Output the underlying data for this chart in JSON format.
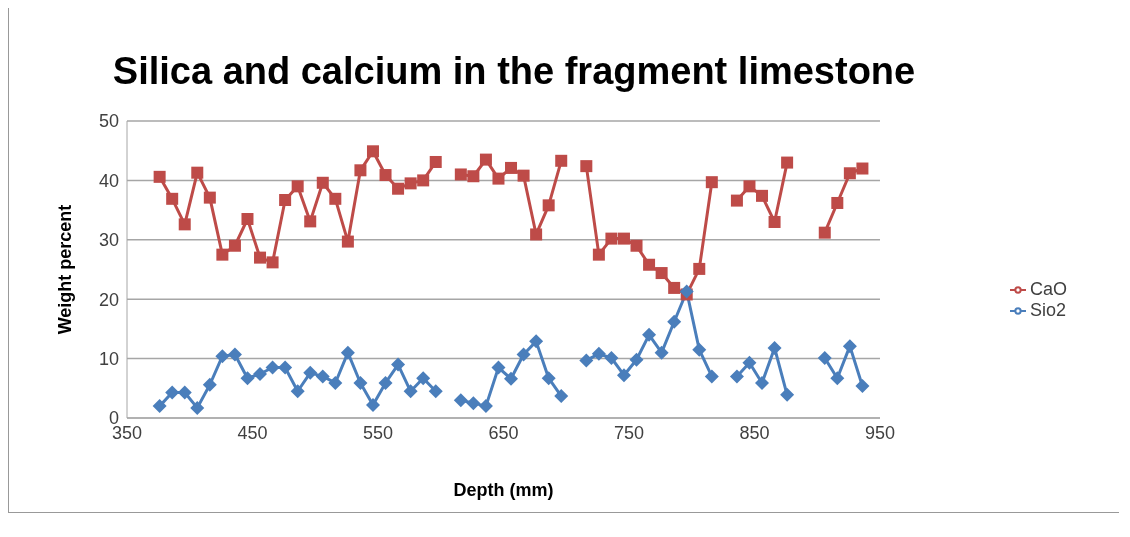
{
  "chart_data": {
    "type": "line",
    "title": "Silica and calcium in the fragment limestone",
    "xlabel": "Depth (mm)",
    "ylabel": "Weight percent",
    "x": [
      376,
      386,
      396,
      406,
      416,
      426,
      436,
      446,
      456,
      466,
      476,
      486,
      496,
      506,
      516,
      526,
      536,
      546,
      556,
      566,
      576,
      586,
      596,
      606,
      616,
      626,
      636,
      646,
      656,
      666,
      676,
      686,
      696,
      706,
      716,
      726,
      736,
      746,
      756,
      766,
      776,
      786,
      796,
      806,
      816,
      826,
      836,
      846,
      856,
      866,
      876,
      886,
      896,
      906,
      916,
      926,
      936
    ],
    "series": [
      {
        "name": "Sio2",
        "color": "#4a7ebb",
        "marker": "diamond",
        "values": [
          2.0,
          4.3,
          4.3,
          1.7,
          5.6,
          10.4,
          10.7,
          6.7,
          7.4,
          8.5,
          8.5,
          4.5,
          7.6,
          7.0,
          5.9,
          11.0,
          5.9,
          2.2,
          5.9,
          9.0,
          4.5,
          6.7,
          4.5,
          null,
          3.0,
          2.5,
          2.0,
          8.5,
          6.6,
          10.7,
          12.9,
          6.7,
          3.7,
          null,
          9.7,
          10.8,
          10.1,
          7.2,
          9.8,
          14.0,
          11.0,
          16.2,
          21.3,
          11.5,
          7.0,
          null,
          7.0,
          9.3,
          5.9,
          11.8,
          3.9,
          null,
          null,
          10.1,
          6.7,
          12.1,
          5.4
        ]
      },
      {
        "name": "CaO",
        "color": "#be4b48",
        "marker": "square",
        "values": [
          40.6,
          36.9,
          32.6,
          41.3,
          37.1,
          27.5,
          29.0,
          33.5,
          27.0,
          26.2,
          36.7,
          39.0,
          33.1,
          39.6,
          36.9,
          29.7,
          41.7,
          44.9,
          40.9,
          38.6,
          39.5,
          40.0,
          43.1,
          null,
          41.0,
          40.7,
          43.5,
          40.3,
          42.1,
          40.8,
          30.9,
          35.8,
          43.3,
          null,
          42.4,
          27.5,
          30.2,
          30.2,
          29.0,
          25.8,
          24.4,
          21.9,
          20.8,
          25.1,
          39.7,
          null,
          36.6,
          39.0,
          37.4,
          33.0,
          43.0,
          null,
          null,
          31.2,
          36.2,
          41.2,
          42.0
        ]
      }
    ],
    "xlim": [
      350,
      950
    ],
    "xticks": [
      350,
      450,
      550,
      650,
      750,
      850,
      950
    ],
    "ylim": [
      0,
      50
    ],
    "yticks": [
      0,
      10,
      20,
      30,
      40,
      50
    ],
    "grid": "y",
    "legend": "right",
    "line_style": "solid"
  }
}
